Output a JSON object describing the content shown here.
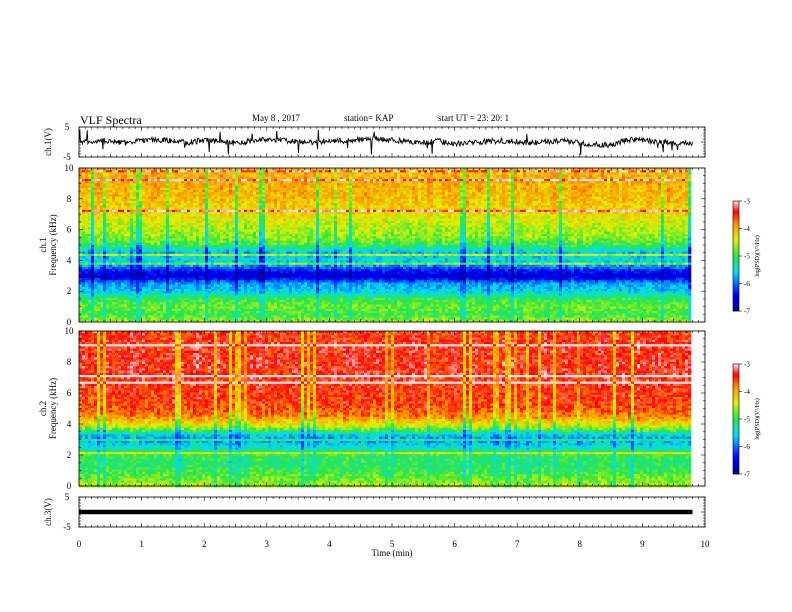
{
  "header": {
    "title": "VLF Spectra",
    "date": "May 8  , 2017",
    "station": "station= KAP",
    "start": "start  UT  =    23: 20: 1"
  },
  "chart_data": [
    {
      "type": "line",
      "panel": "ch1-waveform",
      "ylabel": "ch.1(V)",
      "ylim": [
        -5,
        5
      ],
      "yticks": [
        "5",
        "-5"
      ],
      "xlim": [
        0,
        10
      ],
      "x_end": 9.8,
      "series": [
        {
          "x": [
            0,
            0.25,
            0.5,
            0.75,
            1,
            1.25,
            1.5,
            1.75,
            2,
            2.25,
            2.5,
            2.75,
            3,
            3.25,
            3.5,
            3.75,
            4,
            4.25,
            4.5,
            4.75,
            5,
            5.25,
            5.5,
            5.75,
            6,
            6.25,
            6.5,
            6.75,
            7,
            7.25,
            7.5,
            7.75,
            8,
            8.25,
            8.5,
            8.75,
            9,
            9.25,
            9.5,
            9.8
          ],
          "values": [
            -0.5,
            0.5,
            0.2,
            -0.3,
            0.4,
            0.8,
            0.3,
            -0.2,
            0.6,
            0.2,
            -0.4,
            0.3,
            0.9,
            0.5,
            0.1,
            -0.2,
            0.5,
            0.3,
            0.8,
            1.2,
            0.6,
            0.2,
            -0.1,
            0.3,
            -0.6,
            -0.3,
            0.2,
            0.4,
            0.1,
            -0.3,
            0.2,
            0.5,
            -0.4,
            -0.8,
            -1.0,
            0.8,
            0.6,
            0.1,
            -0.2,
            -0.3
          ]
        }
      ]
    },
    {
      "type": "heatmap",
      "panel": "ch1-spectrogram",
      "ylabel": "ch.1 Frequency (kHz)",
      "ylim": [
        0,
        10
      ],
      "yticks": [
        "0",
        "2",
        "4",
        "6",
        "8",
        "10"
      ],
      "xlim": [
        0,
        10
      ],
      "x_end": 9.8,
      "colorbar": {
        "label": "log(PSD)(V²/Hz)",
        "range": [
          -7,
          -3
        ],
        "ticks": [
          "-3",
          "-4",
          "-5",
          "-6",
          "-7"
        ]
      },
      "mean_log_psd_by_freq": {
        "freq_khz": [
          0,
          0.5,
          1,
          1.5,
          2,
          2.5,
          2.8,
          3,
          3.3,
          3.6,
          4,
          4.5,
          5,
          5.5,
          6,
          7,
          8,
          9,
          10
        ],
        "log_psd": [
          -4.6,
          -5.0,
          -4.8,
          -5.0,
          -5.6,
          -5.8,
          -6.4,
          -6.7,
          -6.4,
          -5.9,
          -5.5,
          -5.7,
          -5.0,
          -4.7,
          -4.6,
          -4.3,
          -4.1,
          -4.0,
          -4.1
        ]
      }
    },
    {
      "type": "heatmap",
      "panel": "ch2-spectrogram",
      "ylabel": "ch.2 Frequency (kHz)",
      "ylim": [
        0,
        10
      ],
      "yticks": [
        "0",
        "2",
        "4",
        "6",
        "8",
        "10"
      ],
      "xlim": [
        0,
        10
      ],
      "x_end": 9.8,
      "colorbar": {
        "label": "log(PSD)(V²/Hz)",
        "range": [
          -7,
          -3
        ],
        "ticks": [
          "-3",
          "-4",
          "-5",
          "-6",
          "-7"
        ]
      },
      "mean_log_psd_by_freq": {
        "freq_khz": [
          0,
          0.5,
          1,
          1.5,
          2,
          2.5,
          2.8,
          3,
          3.3,
          3.6,
          4,
          4.5,
          5,
          5.5,
          6,
          7,
          8,
          9,
          10
        ],
        "log_psd": [
          -4.6,
          -4.8,
          -5.0,
          -5.1,
          -5.0,
          -5.4,
          -5.7,
          -5.9,
          -5.6,
          -4.9,
          -4.3,
          -3.8,
          -3.6,
          -3.5,
          -3.5,
          -3.4,
          -3.4,
          -3.4,
          -3.5
        ]
      }
    },
    {
      "type": "line",
      "panel": "ch3-waveform",
      "ylabel": "ch.3(V)",
      "ylim": [
        -5,
        5
      ],
      "yticks": [
        "5",
        "-5"
      ],
      "xlim": [
        0,
        10
      ],
      "xlabel": "Time  (min)",
      "xticks": [
        "0",
        "1",
        "2",
        "3",
        "4",
        "5",
        "6",
        "7",
        "8",
        "9",
        "10"
      ],
      "x_end": 9.8,
      "series": [
        {
          "x": [
            0,
            9.8
          ],
          "values": [
            0,
            0
          ]
        }
      ]
    }
  ]
}
